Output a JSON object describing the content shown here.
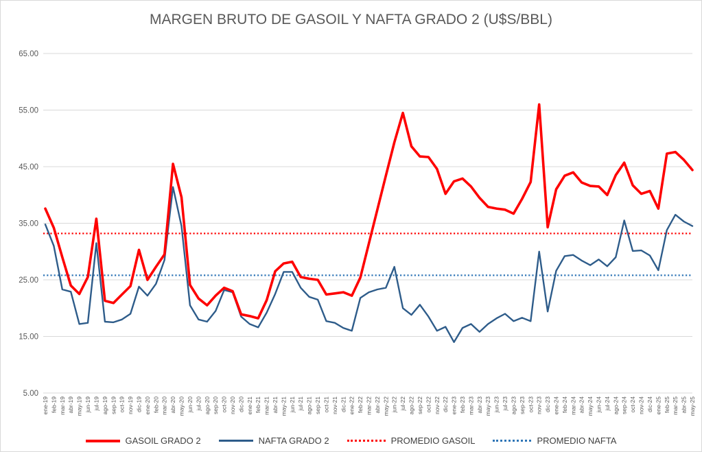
{
  "title": "MARGEN BRUTO DE GASOIL Y NAFTA GRADO 2 (U$S/BBL)",
  "y_axis": {
    "tick_values": [
      65,
      55,
      45,
      35,
      25,
      15,
      5
    ],
    "tick_labels": [
      "65.00",
      "55.00",
      "45.00",
      "35.00",
      "25.00",
      "15.00",
      "5.00"
    ]
  },
  "legend": [
    {
      "label": "GASOIL GRADO 2",
      "color": "#fe0000",
      "style": "solid-thick"
    },
    {
      "label": "NAFTA GRADO 2",
      "color": "#2e5c8a",
      "style": "solid-thin"
    },
    {
      "label": "PROMEDIO GASOIL",
      "color": "#fe0000",
      "style": "dotted"
    },
    {
      "label": "PROMEDIO NAFTA",
      "color": "#2e75b6",
      "style": "dotted"
    }
  ],
  "colors": {
    "gasoil": "#fe0000",
    "nafta": "#2e5c8a",
    "promedio_gasoil": "#fe0000",
    "promedio_nafta": "#2e75b6",
    "gridline": "#d9d9d9",
    "axis_text": "#595959",
    "title_text": "#595959",
    "legend_text": "#404040"
  },
  "chart_data": {
    "type": "line",
    "ylim": [
      5,
      65
    ],
    "grid": "horizontal-only",
    "legend_position": "bottom",
    "categories": [
      "ene-19",
      "feb-19",
      "mar-19",
      "abr-19",
      "may-19",
      "jun-19",
      "jul-19",
      "ago-19",
      "sep-19",
      "oct-19",
      "nov-19",
      "dic-19",
      "ene-20",
      "feb-20",
      "mar-20",
      "abr-20",
      "may-20",
      "jun-20",
      "jul-20",
      "ago-20",
      "sep-20",
      "oct-20",
      "nov-20",
      "dic-20",
      "ene-21",
      "feb-21",
      "mar-21",
      "abr-21",
      "may-21",
      "jun-21",
      "jul-21",
      "ago-21",
      "sep-21",
      "oct-21",
      "nov-21",
      "dic-21",
      "ene-22",
      "feb-22",
      "mar-22",
      "abr-22",
      "may-22",
      "jun-22",
      "jul-22",
      "ago-22",
      "sep-22",
      "oct-22",
      "nov-22",
      "dic-22",
      "ene-23",
      "feb-23",
      "mar-23",
      "abr-23",
      "may-23",
      "jun-23",
      "jul-23",
      "ago-23",
      "sep-23",
      "oct-23",
      "nov-23",
      "dic-23",
      "ene-24",
      "feb-24",
      "mar-24",
      "abr-24",
      "may-24",
      "jun-24",
      "jul-24",
      "ago-24",
      "sep-24",
      "oct-24",
      "nov-24",
      "dic-24",
      "ene-25",
      "feb-25",
      "mar-25",
      "abr-25",
      "may-25"
    ],
    "series": [
      {
        "name": "GASOIL GRADO 2",
        "color": "#fe0000",
        "width": 3.6,
        "values": [
          37.6,
          34.2,
          29.0,
          24.0,
          22.5,
          25.5,
          35.8,
          21.3,
          20.9,
          22.4,
          23.9,
          30.3,
          25.0,
          27.3,
          29.5,
          45.5,
          39.6,
          24.1,
          21.7,
          20.5,
          22.2,
          23.6,
          23.0,
          18.9,
          18.6,
          18.2,
          21.4,
          26.5,
          27.9,
          28.2,
          25.5,
          25.2,
          25.0,
          22.4,
          22.6,
          22.8,
          22.2,
          25.4,
          31.4,
          37.4,
          43.4,
          49.3,
          54.5,
          48.6,
          46.8,
          46.7,
          44.6,
          40.2,
          42.4,
          42.9,
          41.5,
          39.5,
          37.9,
          37.6,
          37.4,
          36.7,
          39.3,
          42.3,
          56.0,
          34.3,
          41.0,
          43.4,
          44.0,
          42.2,
          41.6,
          41.5,
          40.0,
          43.5,
          45.7,
          41.7,
          40.2,
          40.7,
          37.6,
          47.3,
          47.6,
          46.2,
          44.4
        ]
      },
      {
        "name": "NAFTA GRADO 2",
        "color": "#2e5c8a",
        "width": 2.4,
        "values": [
          34.8,
          31.0,
          23.3,
          22.9,
          17.2,
          17.4,
          31.5,
          17.6,
          17.5,
          18.0,
          19.0,
          23.8,
          22.2,
          24.3,
          28.5,
          41.4,
          34.5,
          20.5,
          18.0,
          17.6,
          19.5,
          23.2,
          22.8,
          18.5,
          17.2,
          16.6,
          19.2,
          22.5,
          26.4,
          26.4,
          23.6,
          22.0,
          21.5,
          17.7,
          17.4,
          16.5,
          16.0,
          21.8,
          22.8,
          23.3,
          23.6,
          27.3,
          20.0,
          18.8,
          20.6,
          18.5,
          16.0,
          16.7,
          14.0,
          16.5,
          17.2,
          15.8,
          17.2,
          18.2,
          19.0,
          17.7,
          18.3,
          17.7,
          30.0,
          19.4,
          26.6,
          29.2,
          29.4,
          28.4,
          27.6,
          28.6,
          27.4,
          29.0,
          35.5,
          30.1,
          30.2,
          29.3,
          26.7,
          33.8,
          36.5,
          35.3,
          34.5
        ]
      }
    ],
    "reference_lines": [
      {
        "name": "PROMEDIO GASOIL",
        "value": 33.2,
        "color": "#fe0000"
      },
      {
        "name": "PROMEDIO NAFTA",
        "value": 25.8,
        "color": "#2e75b6"
      }
    ]
  }
}
